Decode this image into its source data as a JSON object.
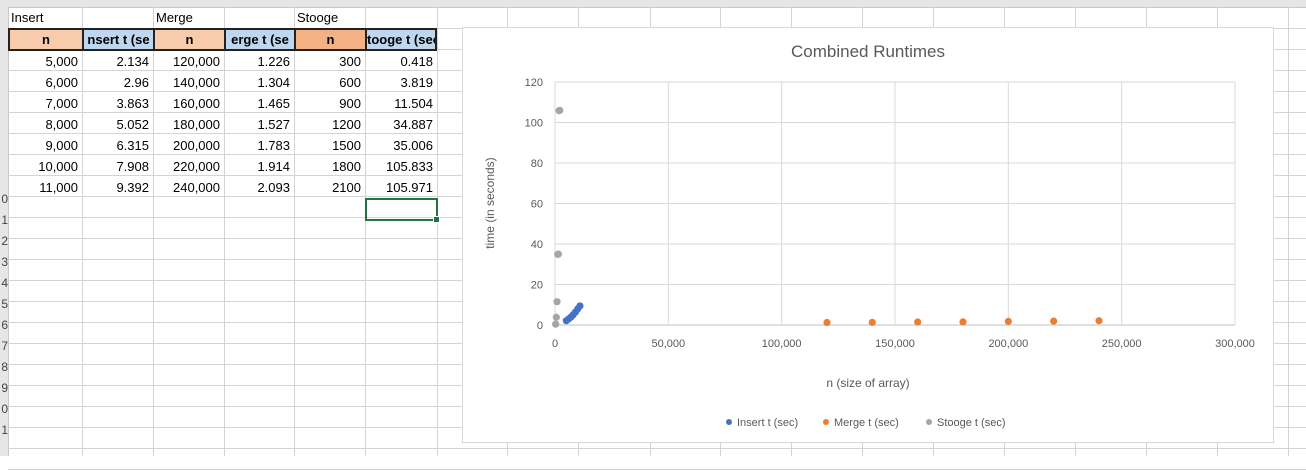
{
  "sheet": {
    "group_labels": [
      "Insert",
      "Merge",
      "Stooge"
    ],
    "headers": [
      "n",
      "nsert t (se",
      "n",
      "erge t (se",
      "n",
      "tooge t (sec)"
    ],
    "header_colors": [
      "#f8cbad",
      "#bdd7ee",
      "#f8cbad",
      "#bdd7ee",
      "#f4b183",
      "#bdd7ee"
    ],
    "rows": [
      [
        "5,000",
        "2.134",
        "120,000",
        "1.226",
        "300",
        "0.418"
      ],
      [
        "6,000",
        "2.96",
        "140,000",
        "1.304",
        "600",
        "3.819"
      ],
      [
        "7,000",
        "3.863",
        "160,000",
        "1.465",
        "900",
        "11.504"
      ],
      [
        "8,000",
        "5.052",
        "180,000",
        "1.527",
        "1200",
        "34.887"
      ],
      [
        "9,000",
        "6.315",
        "200,000",
        "1.783",
        "1500",
        "35.006"
      ],
      [
        "10,000",
        "7.908",
        "220,000",
        "1.914",
        "1800",
        "105.833"
      ],
      [
        "11,000",
        "9.392",
        "240,000",
        "2.093",
        "2100",
        "105.971"
      ]
    ],
    "row_numbers": [
      "0",
      "1",
      "2",
      "3",
      "4",
      "5",
      "6",
      "7",
      "8",
      "9",
      "0",
      "1"
    ]
  },
  "chart_data": {
    "type": "scatter",
    "title": "Combined Runtimes",
    "xlabel": "n (size of array)",
    "ylabel": "time (in seconds)",
    "xlim": [
      0,
      300000
    ],
    "ylim": [
      0,
      120
    ],
    "x_ticks": [
      "0",
      "50,000",
      "100,000",
      "150,000",
      "200,000",
      "250,000",
      "300,000"
    ],
    "x_tick_values": [
      0,
      50000,
      100000,
      150000,
      200000,
      250000,
      300000
    ],
    "y_ticks": [
      "0",
      "20",
      "40",
      "60",
      "80",
      "100",
      "120"
    ],
    "y_tick_values": [
      0,
      20,
      40,
      60,
      80,
      100,
      120
    ],
    "grid": true,
    "legend_position": "bottom",
    "series": [
      {
        "name": "Insert t (sec)",
        "color": "#4472c4",
        "x": [
          5000,
          6000,
          7000,
          8000,
          9000,
          10000,
          11000
        ],
        "y": [
          2.134,
          2.96,
          3.863,
          5.052,
          6.315,
          7.908,
          9.392
        ]
      },
      {
        "name": "Merge t (sec)",
        "color": "#ed7d31",
        "x": [
          120000,
          140000,
          160000,
          180000,
          200000,
          220000,
          240000
        ],
        "y": [
          1.226,
          1.304,
          1.465,
          1.527,
          1.783,
          1.914,
          2.093
        ]
      },
      {
        "name": "Stooge t (sec)",
        "color": "#a5a5a5",
        "x": [
          300,
          600,
          900,
          1200,
          1500,
          1800,
          2100
        ],
        "y": [
          0.418,
          3.819,
          11.504,
          34.887,
          35.006,
          105.833,
          105.971
        ]
      }
    ]
  }
}
